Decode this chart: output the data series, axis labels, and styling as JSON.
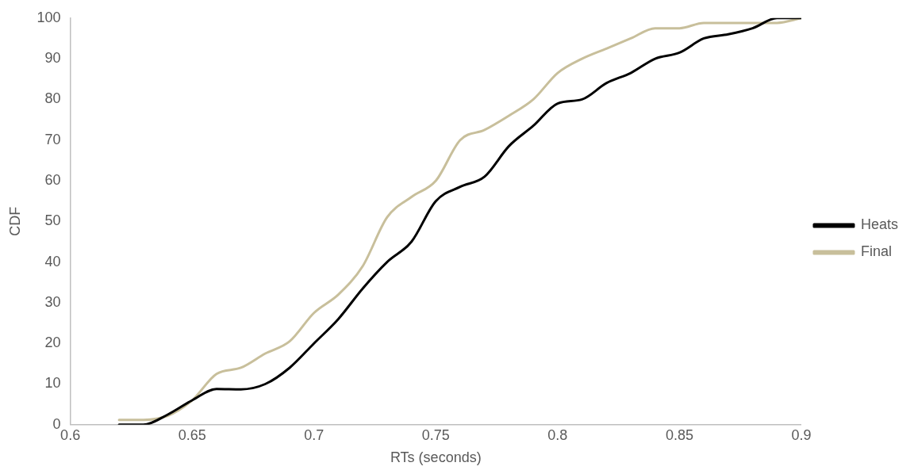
{
  "chart_data": {
    "type": "line",
    "xlabel": "RTs (seconds)",
    "ylabel": "CDF",
    "x": [
      0.62,
      0.63,
      0.64,
      0.65,
      0.66,
      0.67,
      0.68,
      0.69,
      0.7,
      0.71,
      0.72,
      0.73,
      0.74,
      0.75,
      0.76,
      0.77,
      0.78,
      0.79,
      0.8,
      0.81,
      0.82,
      0.83,
      0.84,
      0.85,
      0.86,
      0.87,
      0.88,
      0.89,
      0.9
    ],
    "series": [
      {
        "name": "Heats",
        "color": "#000000",
        "values": [
          0,
          0,
          2.5,
          6,
          8.8,
          8.7,
          10,
          14,
          20,
          26,
          33.5,
          40,
          45,
          55,
          58.5,
          61,
          68.5,
          73.5,
          79,
          80,
          84,
          86.5,
          90,
          91.5,
          95,
          96,
          97.5,
          100,
          100
        ]
      },
      {
        "name": "Final",
        "color": "#c8bf9b",
        "values": [
          1.2,
          1.2,
          2.2,
          6,
          12.5,
          14,
          17.5,
          20.5,
          27.5,
          32,
          39,
          51,
          56,
          60,
          70,
          72.5,
          76,
          80,
          86.5,
          90,
          92.5,
          95,
          97.5,
          97.5,
          98.8,
          98.8,
          98.8,
          98.8,
          100
        ]
      }
    ],
    "xlim": [
      0.6,
      0.9
    ],
    "xticks": [
      0.6,
      0.65,
      0.7,
      0.75,
      0.8,
      0.85,
      0.9
    ],
    "ylim": [
      0,
      100
    ],
    "yticks": [
      0,
      10,
      20,
      30,
      40,
      50,
      60,
      70,
      80,
      90,
      100
    ],
    "grid": false,
    "legend": "right",
    "marker": "none",
    "line_style": "solid"
  }
}
